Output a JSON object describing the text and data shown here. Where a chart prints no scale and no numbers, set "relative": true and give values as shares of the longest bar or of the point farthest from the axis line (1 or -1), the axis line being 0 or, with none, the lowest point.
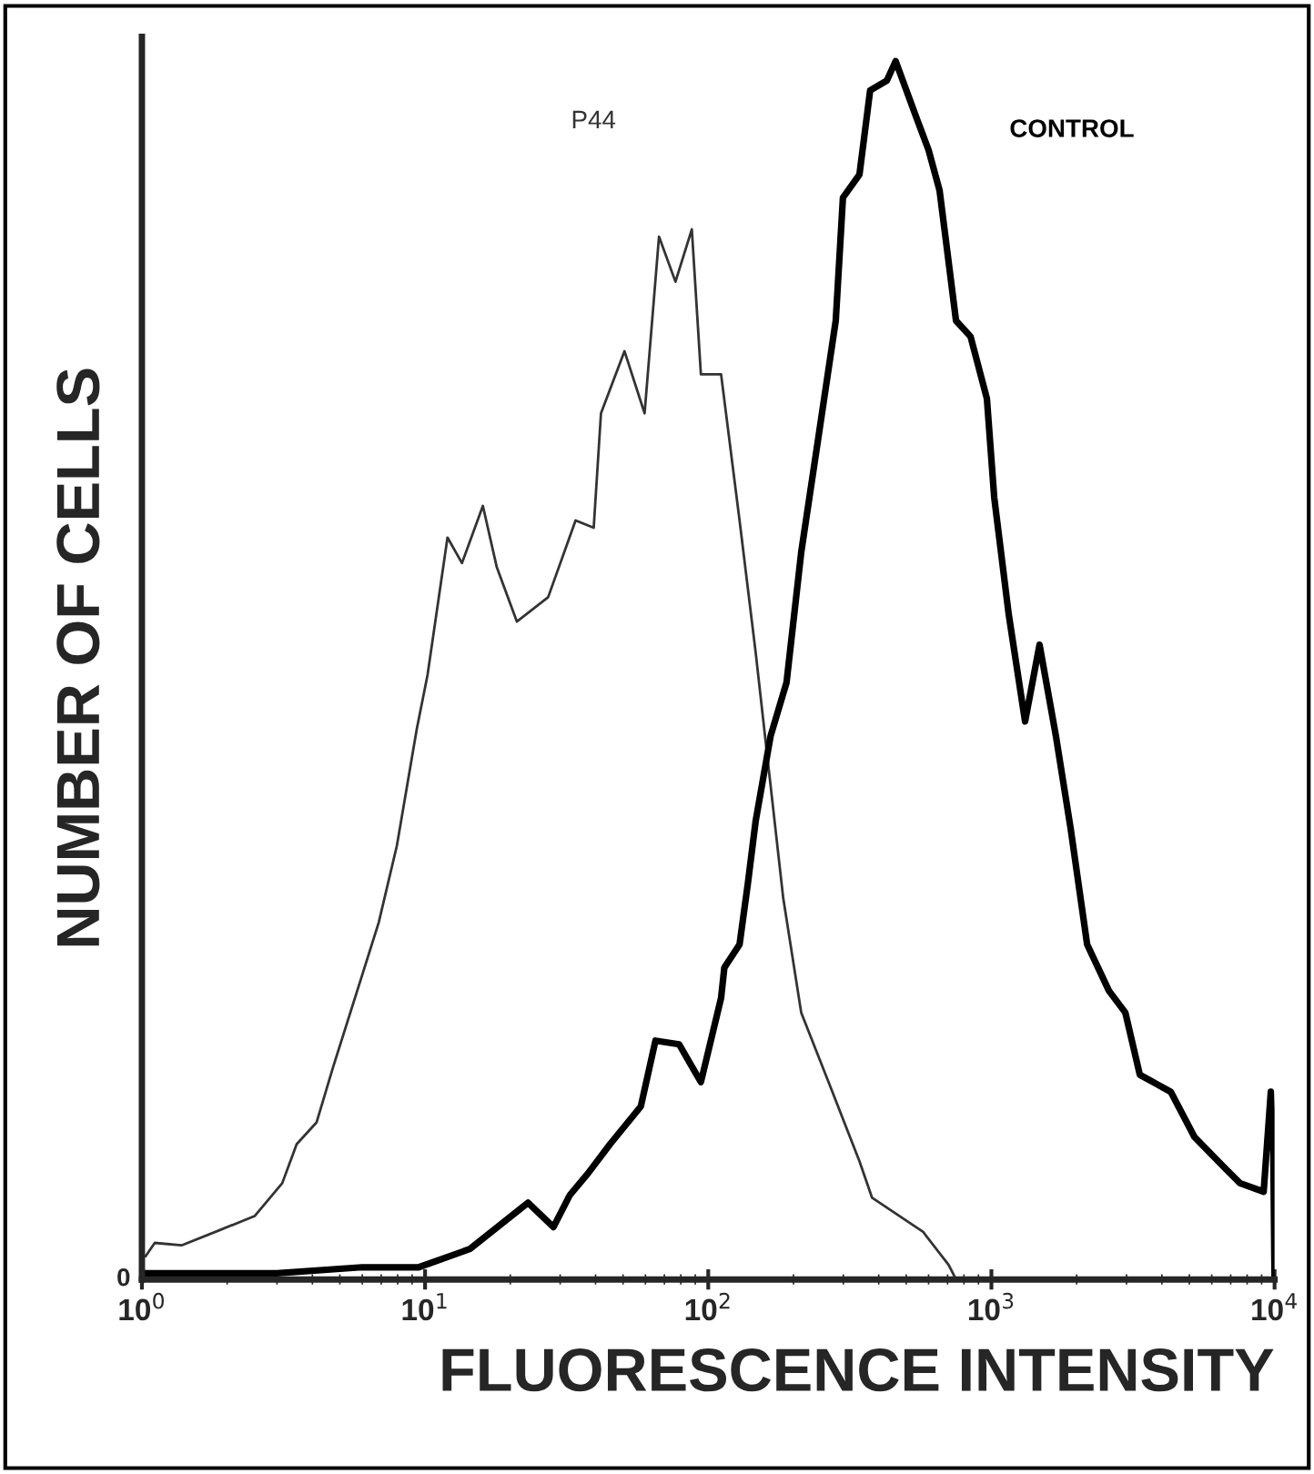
{
  "chart_data": {
    "type": "line",
    "relative": true,
    "log": "x",
    "xlabel": "FLUORESCENCE INTENSITY",
    "ylabel": "NUMBER OF CELLS",
    "xlim": [
      1,
      10000
    ],
    "xticks": [
      {
        "value": 1,
        "label": "10$^{0}$"
      },
      {
        "value": 10,
        "label": "10$^{1}$"
      },
      {
        "value": 100,
        "label": "10$^{2}$"
      },
      {
        "value": 1000,
        "label": "10$^{3}$"
      },
      {
        "value": 10000,
        "label": "10$^{4}$"
      }
    ],
    "annotations": [
      "0"
    ],
    "grid": false,
    "legend": false,
    "series": [
      {
        "name": "P44",
        "color": "#333333",
        "x": [
          1.03,
          1.11,
          1.38,
          1.86,
          2.5,
          3.13,
          3.52,
          4.14,
          4.73,
          6.0,
          6.86,
          7.95,
          9.35,
          10.2,
          12.0,
          13.5,
          16.0,
          17.9,
          21.1,
          27.2,
          34.0,
          39.4,
          41.8,
          50.6,
          59.6,
          67.0,
          76.6,
          87.5,
          94.2,
          111,
          129,
          147,
          161,
          184,
          213,
          266,
          342,
          379,
          574,
          706,
          750
        ],
        "values": [
          0.019,
          0.03,
          0.028,
          0.04,
          0.052,
          0.079,
          0.111,
          0.129,
          0.174,
          0.25,
          0.293,
          0.356,
          0.452,
          0.496,
          0.609,
          0.588,
          0.635,
          0.585,
          0.54,
          0.56,
          0.623,
          0.617,
          0.711,
          0.762,
          0.711,
          0.856,
          0.819,
          0.862,
          0.743,
          0.743,
          0.623,
          0.515,
          0.433,
          0.313,
          0.219,
          0.162,
          0.097,
          0.067,
          0.039,
          0.012,
          0
        ]
      },
      {
        "name": "CONTROL",
        "color": "#000000",
        "x": [
          1,
          3,
          6,
          9.5,
          14.4,
          23.1,
          28.4,
          32.4,
          37.6,
          45.0,
          57.8,
          65.1,
          78.9,
          94.2,
          111,
          114,
          129,
          138,
          147,
          166,
          189,
          213,
          243,
          282,
          299,
          342,
          373,
          427,
          459,
          549,
          600,
          656,
          750,
          844,
          964,
          1023,
          1151,
          1315,
          1479,
          1690,
          1905,
          2178,
          2600,
          2971,
          3343,
          4300,
          5210,
          6700,
          7550,
          9150,
          9700,
          9900,
          10000
        ],
        "values": [
          0.005,
          0.005,
          0.01,
          0.01,
          0.025,
          0.063,
          0.043,
          0.069,
          0.087,
          0.111,
          0.142,
          0.196,
          0.193,
          0.162,
          0.231,
          0.256,
          0.275,
          0.325,
          0.376,
          0.446,
          0.49,
          0.597,
          0.686,
          0.787,
          0.888,
          0.907,
          0.976,
          0.984,
          1.0,
          0.951,
          0.927,
          0.894,
          0.787,
          0.774,
          0.723,
          0.642,
          0.546,
          0.458,
          0.521,
          0.446,
          0.37,
          0.275,
          0.237,
          0.219,
          0.168,
          0.154,
          0.117,
          0.091,
          0.079,
          0.072,
          0.154,
          0.105,
          0
        ]
      }
    ]
  }
}
